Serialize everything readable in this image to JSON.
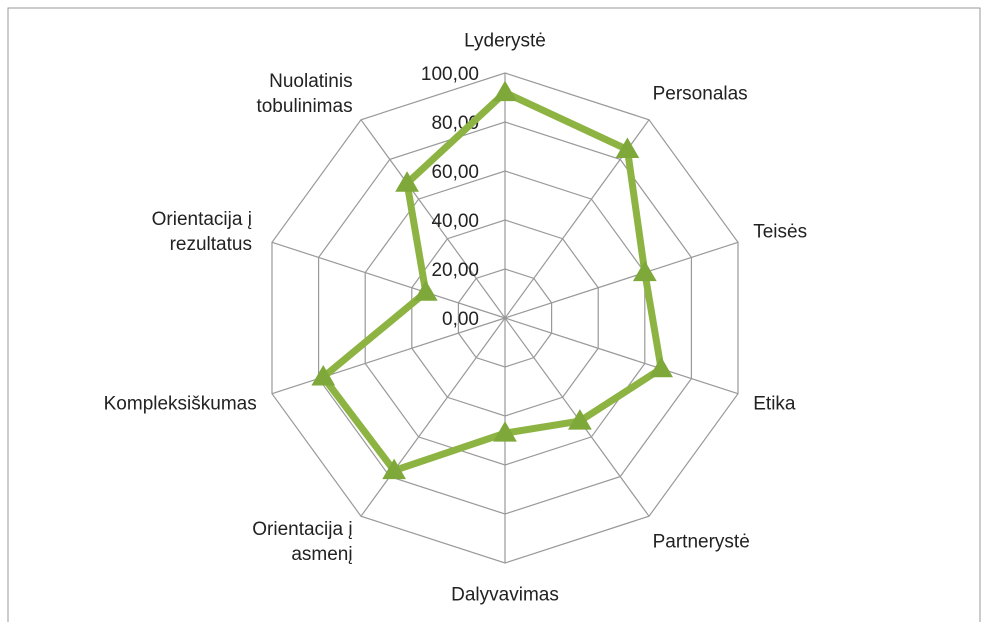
{
  "chart_data": {
    "type": "radar",
    "categories": [
      "Lyderystė",
      "Personalas",
      "Teisės",
      "Etika",
      "Partnerystė",
      "Dalyvavimas",
      "Orientacija į asmenį",
      "Kompleksiškumas",
      "Orientacija į rezultatus",
      "Nuolatinis tobulinimas"
    ],
    "series": [
      {
        "color": "#8db443",
        "values": [
          92,
          85,
          60,
          67,
          52,
          47,
          77,
          78,
          34,
          68
        ]
      }
    ],
    "ylim": [
      0,
      100
    ],
    "yticks": [
      {
        "value": 0,
        "label": "0,00"
      },
      {
        "value": 20,
        "label": "20,00"
      },
      {
        "value": 40,
        "label": "40,00"
      },
      {
        "value": 60,
        "label": "60,00"
      },
      {
        "value": 80,
        "label": "80,00"
      },
      {
        "value": 100,
        "label": "100,00"
      }
    ],
    "grid": true
  }
}
